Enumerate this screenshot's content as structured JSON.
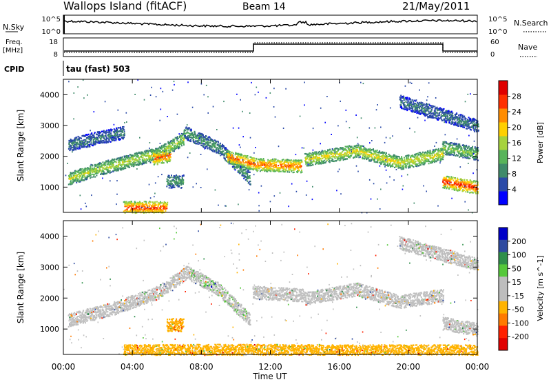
{
  "header": {
    "station": "Wallops Island (fitACF)",
    "beam": "Beam 14",
    "date": "21/May/2011"
  },
  "summary_panels": {
    "nsky": {
      "label": "N.Sky",
      "ticks": [
        "10^5",
        "10^0"
      ],
      "right_label": "N.Search",
      "right_ticks": [
        "10^5",
        "10^0"
      ]
    },
    "freq": {
      "label_line1": "Freq.",
      "label_line2": "[MHz]",
      "ticks": [
        "18",
        "8"
      ],
      "right_label": "Nave",
      "right_ticks": [
        "60",
        "0"
      ]
    },
    "cpid": {
      "label": "CPID",
      "program": "tau (fast) 503"
    }
  },
  "x_axis": {
    "label": "Time UT",
    "ticks": [
      "00:00",
      "04:00",
      "08:00",
      "12:00",
      "16:00",
      "20:00",
      "00:00"
    ],
    "tick_hours": [
      0,
      4,
      8,
      12,
      16,
      20,
      24
    ]
  },
  "colors": {
    "power_scale": [
      "#0000ff",
      "#2a4aa8",
      "#3f8a6a",
      "#58b45a",
      "#a6d23c",
      "#ffd000",
      "#ff8c00",
      "#ff3000",
      "#e00000"
    ],
    "velocity_scale": [
      "#0000c8",
      "#2e4aa0",
      "#2f8f4a",
      "#55c83a",
      "#bdbdbd",
      "#bdbdbd",
      "#ffb300",
      "#ff7a00",
      "#ff2000",
      "#e00000"
    ],
    "background_echo": "#c0c0c0"
  },
  "chart_data": [
    {
      "type": "heatmap",
      "name_text": "power",
      "ylabel": "Slant Range [km]",
      "ylim": [
        180,
        4500
      ],
      "xlim": [
        0,
        24
      ],
      "yticks": [
        1000,
        2000,
        3000,
        4000
      ],
      "colorbar": {
        "label": "Power [dB]",
        "ticks": [
          "4",
          "8",
          "12",
          "16",
          "20",
          "24",
          "28"
        ],
        "range": [
          0,
          30
        ]
      },
      "echo_bands": [
        {
          "t": [
            0.3,
            2,
            4,
            5.5,
            7
          ],
          "r": [
            1300,
            1600,
            1900,
            2100,
            2600
          ],
          "level": 16
        },
        {
          "t": [
            5.2,
            6.2
          ],
          "r": [
            1950,
            2050
          ],
          "level": 25
        },
        {
          "t": [
            7,
            9,
            10.8
          ],
          "r": [
            2800,
            2300,
            1300
          ],
          "level": 10
        },
        {
          "t": [
            9.5,
            11.2,
            13.8
          ],
          "r": [
            2000,
            1750,
            1700
          ],
          "level": 24
        },
        {
          "t": [
            14,
            17,
            19.5,
            22
          ],
          "r": [
            1900,
            2200,
            1800,
            2100
          ],
          "level": 18
        },
        {
          "t": [
            22,
            24
          ],
          "r": [
            1200,
            1000
          ],
          "level": 27
        },
        {
          "t": [
            22,
            24
          ],
          "r": [
            2300,
            2100
          ],
          "level": 14
        },
        {
          "t": [
            19.5,
            24
          ],
          "r": [
            3800,
            3000
          ],
          "level": 8
        },
        {
          "t": [
            0.3,
            3.5
          ],
          "r": [
            2400,
            2800
          ],
          "level": 8
        },
        {
          "t": [
            3.5,
            6
          ],
          "r": [
            350,
            350
          ],
          "level": 26
        },
        {
          "t": [
            6,
            6.9
          ],
          "r": [
            1200,
            1200
          ],
          "level": 10
        }
      ]
    },
    {
      "type": "heatmap",
      "name_text": "velocity",
      "ylabel": "Slant Range [km]",
      "ylim": [
        180,
        4500
      ],
      "xlim": [
        0,
        24
      ],
      "yticks": [
        1000,
        2000,
        3000,
        4000
      ],
      "colorbar": {
        "label": "Velocity [m s^-1]",
        "ticks": [
          "200",
          "100",
          "50",
          "15",
          "-15",
          "-50",
          "-100",
          "-200"
        ],
        "range": [
          -250,
          250
        ]
      },
      "echo_bands": [
        {
          "t": [
            0.3,
            3,
            5.5,
            7.3
          ],
          "r": [
            1300,
            1700,
            2200,
            2900
          ],
          "velocity": 0
        },
        {
          "t": [
            7.3,
            9,
            10.8
          ],
          "r": [
            2800,
            2300,
            1300
          ],
          "velocity": 40
        },
        {
          "t": [
            11,
            14
          ],
          "r": [
            2200,
            2100
          ],
          "velocity": 0
        },
        {
          "t": [
            14,
            17,
            19.5,
            22
          ],
          "r": [
            2000,
            2300,
            1900,
            2100
          ],
          "velocity": 0
        },
        {
          "t": [
            22,
            24
          ],
          "r": [
            1200,
            1000
          ],
          "velocity": 0
        },
        {
          "t": [
            19.5,
            24
          ],
          "r": [
            3800,
            3100
          ],
          "velocity": -20
        },
        {
          "t": [
            3.5,
            9,
            16,
            24
          ],
          "r": [
            300,
            320,
            300,
            300
          ],
          "velocity": -70
        },
        {
          "t": [
            6,
            6.9
          ],
          "r": [
            1150,
            1150
          ],
          "velocity": -90
        }
      ]
    }
  ]
}
